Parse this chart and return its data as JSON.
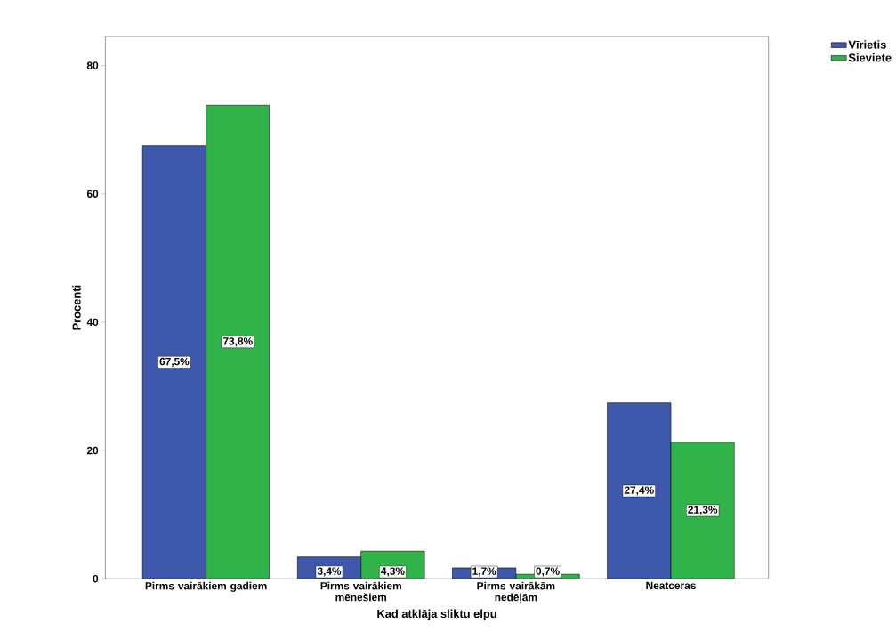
{
  "chart_data": {
    "type": "bar",
    "xlabel": "Kad atklāja sliktu elpu",
    "ylabel": "Procenti",
    "categories": [
      "Pirms vairākiem gadiem",
      "Pirms vairākiem mēnešiem",
      "Pirms vairākām nedēļām",
      "Neatceras"
    ],
    "series": [
      {
        "name": "Vīrietis",
        "color": "#3e58ac",
        "values": [
          67.5,
          3.4,
          1.7,
          27.4
        ],
        "value_labels": [
          "67,5%",
          "3,4%",
          "1,7%",
          "27,4%"
        ]
      },
      {
        "name": "Sieviete",
        "color": "#30b44a",
        "values": [
          73.8,
          4.3,
          0.7,
          21.3
        ],
        "value_labels": [
          "73,8%",
          "4,3%",
          "0,7%",
          "21,3%"
        ]
      }
    ],
    "ylim": [
      0,
      84.5
    ],
    "yticks": [
      0,
      20,
      40,
      60,
      80
    ],
    "grid": false,
    "legend": "top right"
  }
}
